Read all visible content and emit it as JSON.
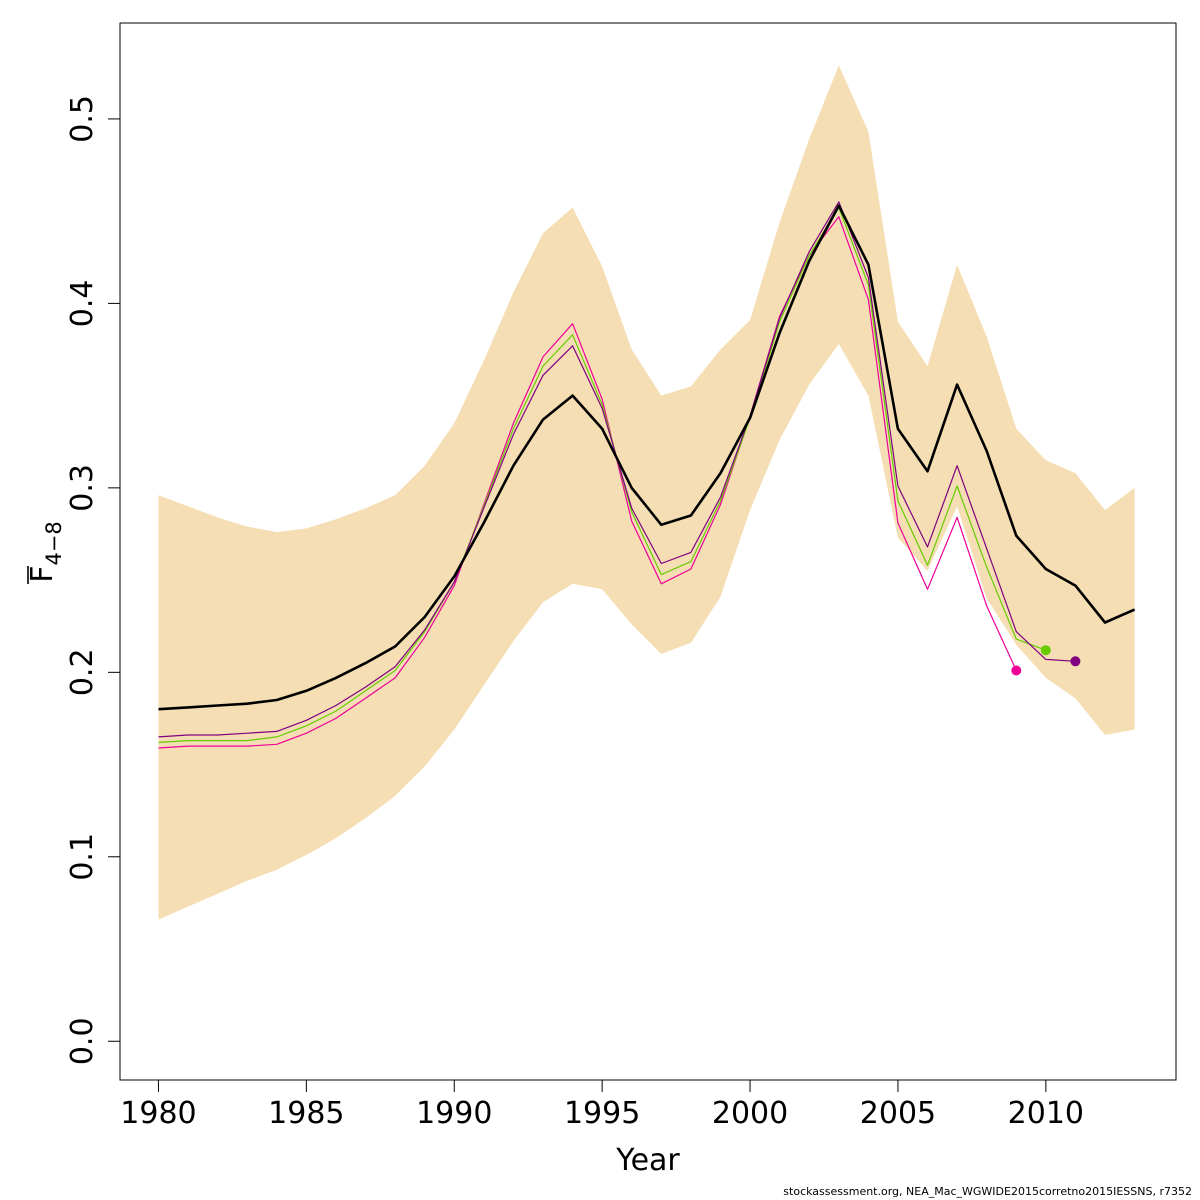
{
  "chart_data": {
    "type": "line",
    "xlabel": "Year",
    "ylabel_main": "F",
    "ylabel_sub": "4−8",
    "xlim": [
      1978.7,
      2014.4
    ],
    "ylim": [
      -0.021,
      0.552
    ],
    "x_ticks": [
      1980,
      1985,
      1990,
      1995,
      2000,
      2005,
      2010
    ],
    "x_tick_labels": [
      "1980",
      "1985",
      "1990",
      "1995",
      "2000",
      "2005",
      "2010"
    ],
    "y_ticks": [
      0.0,
      0.1,
      0.2,
      0.3,
      0.4,
      0.5
    ],
    "y_tick_labels": [
      "0.0",
      "0.1",
      "0.2",
      "0.3",
      "0.4",
      "0.5"
    ],
    "grid": false,
    "band": {
      "color": "#F5DEB3",
      "x": [
        1980,
        1981,
        1982,
        1983,
        1984,
        1985,
        1986,
        1987,
        1988,
        1989,
        1990,
        1991,
        1992,
        1993,
        1994,
        1995,
        1996,
        1997,
        1998,
        1999,
        2000,
        2001,
        2002,
        2003,
        2004,
        2005,
        2006,
        2007,
        2008,
        2009,
        2010,
        2011,
        2012,
        2013
      ],
      "upper": [
        0.296,
        0.29,
        0.284,
        0.279,
        0.276,
        0.278,
        0.283,
        0.289,
        0.296,
        0.312,
        0.335,
        0.369,
        0.406,
        0.438,
        0.452,
        0.42,
        0.375,
        0.35,
        0.355,
        0.375,
        0.391,
        0.444,
        0.489,
        0.529,
        0.493,
        0.39,
        0.366,
        0.421,
        0.382,
        0.332,
        0.315,
        0.308,
        0.288,
        0.3
      ],
      "lower": [
        0.066,
        0.073,
        0.08,
        0.087,
        0.093,
        0.101,
        0.11,
        0.121,
        0.133,
        0.149,
        0.169,
        0.193,
        0.217,
        0.238,
        0.248,
        0.245,
        0.226,
        0.21,
        0.216,
        0.241,
        0.288,
        0.326,
        0.356,
        0.378,
        0.35,
        0.273,
        0.255,
        0.29,
        0.24,
        0.215,
        0.197,
        0.186,
        0.166,
        0.169
      ]
    },
    "series": [
      {
        "color": "#ee0099",
        "width": 1.2,
        "x": [
          1980,
          1981,
          1982,
          1983,
          1984,
          1985,
          1986,
          1987,
          1988,
          1989,
          1990,
          1991,
          1992,
          1993,
          1994,
          1995,
          1996,
          1997,
          1998,
          1999,
          2000,
          2001,
          2002,
          2003,
          2004,
          2005,
          2006,
          2007,
          2008,
          2009
        ],
        "values": [
          0.159,
          0.16,
          0.16,
          0.16,
          0.161,
          0.167,
          0.175,
          0.186,
          0.197,
          0.219,
          0.247,
          0.291,
          0.335,
          0.371,
          0.389,
          0.348,
          0.282,
          0.248,
          0.256,
          0.291,
          0.339,
          0.393,
          0.426,
          0.447,
          0.402,
          0.281,
          0.245,
          0.284,
          0.236,
          0.201
        ],
        "end_point": true
      },
      {
        "color": "#66cc00",
        "width": 1.2,
        "x": [
          1980,
          1981,
          1982,
          1983,
          1984,
          1985,
          1986,
          1987,
          1988,
          1989,
          1990,
          1991,
          1992,
          1993,
          1994,
          1995,
          1996,
          1997,
          1998,
          1999,
          2000,
          2001,
          2002,
          2003,
          2004,
          2005,
          2006,
          2007,
          2008,
          2009,
          2010
        ],
        "values": [
          0.162,
          0.163,
          0.163,
          0.163,
          0.165,
          0.171,
          0.179,
          0.19,
          0.201,
          0.222,
          0.249,
          0.29,
          0.332,
          0.366,
          0.383,
          0.345,
          0.287,
          0.253,
          0.26,
          0.293,
          0.338,
          0.39,
          0.426,
          0.452,
          0.41,
          0.293,
          0.258,
          0.301,
          0.257,
          0.218,
          0.212
        ],
        "end_point": true
      },
      {
        "color": "#800080",
        "width": 1.2,
        "x": [
          1980,
          1981,
          1982,
          1983,
          1984,
          1985,
          1986,
          1987,
          1988,
          1989,
          1990,
          1991,
          1992,
          1993,
          1994,
          1995,
          1996,
          1997,
          1998,
          1999,
          2000,
          2001,
          2002,
          2003,
          2004,
          2005,
          2006,
          2007,
          2008,
          2009,
          2010,
          2011
        ],
        "values": [
          0.165,
          0.166,
          0.166,
          0.167,
          0.168,
          0.174,
          0.182,
          0.192,
          0.203,
          0.223,
          0.249,
          0.289,
          0.329,
          0.361,
          0.377,
          0.343,
          0.289,
          0.259,
          0.265,
          0.295,
          0.339,
          0.392,
          0.428,
          0.455,
          0.414,
          0.301,
          0.268,
          0.312,
          0.267,
          0.222,
          0.207,
          0.206
        ],
        "end_point": true
      },
      {
        "color": "#000000",
        "width": 2.6,
        "x": [
          1980,
          1981,
          1982,
          1983,
          1984,
          1985,
          1986,
          1987,
          1988,
          1989,
          1990,
          1991,
          1992,
          1993,
          1994,
          1995,
          1996,
          1997,
          1998,
          1999,
          2000,
          2001,
          2002,
          2003,
          2004,
          2005,
          2006,
          2007,
          2008,
          2009,
          2010,
          2011,
          2012,
          2013
        ],
        "values": [
          0.18,
          0.181,
          0.182,
          0.183,
          0.185,
          0.19,
          0.197,
          0.205,
          0.214,
          0.23,
          0.252,
          0.281,
          0.312,
          0.337,
          0.35,
          0.332,
          0.3,
          0.28,
          0.285,
          0.308,
          0.338,
          0.384,
          0.423,
          0.453,
          0.421,
          0.332,
          0.309,
          0.356,
          0.32,
          0.274,
          0.256,
          0.247,
          0.227,
          0.234
        ],
        "end_point": false
      }
    ]
  },
  "footer": "stockassessment.org, NEA_Mac_WGWIDE2015corretno2015IESSNS, r7352"
}
